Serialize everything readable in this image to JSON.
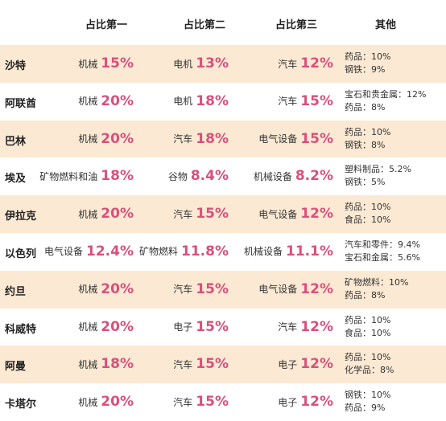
{
  "headers": [
    "占比第一",
    "占比第二",
    "占比第三",
    "其他"
  ],
  "rows": [
    {
      "country": "沙特",
      "first": {
        "label": "机械",
        "pct": "15%"
      },
      "second": {
        "label": "电机",
        "pct": "13%"
      },
      "third": {
        "label": "汽车",
        "pct": "12%"
      },
      "other": [
        "药品：10%",
        "钢铁：9%"
      ]
    },
    {
      "country": "阿联酋",
      "first": {
        "label": "机械",
        "pct": "20%"
      },
      "second": {
        "label": "电机",
        "pct": "18%"
      },
      "third": {
        "label": "汽车",
        "pct": "15%"
      },
      "other": [
        "宝石和贵金属：12%",
        "药品：8%"
      ]
    },
    {
      "country": "巴林",
      "first": {
        "label": "机械",
        "pct": "20%"
      },
      "second": {
        "label": "汽车",
        "pct": "18%"
      },
      "third": {
        "label": "电气设备",
        "pct": "15%"
      },
      "other": [
        "药品：10%",
        "钢铁：8%"
      ]
    },
    {
      "country": "埃及",
      "first": {
        "label": "矿物燃料和油",
        "pct": "18%"
      },
      "second": {
        "label": "谷物",
        "pct": "8.4%"
      },
      "third": {
        "label": "机械设备",
        "pct": "8.2%"
      },
      "other": [
        "塑料制品：5.2%",
        "钢铁：5%"
      ]
    },
    {
      "country": "伊拉克",
      "first": {
        "label": "机械",
        "pct": "20%"
      },
      "second": {
        "label": "汽车",
        "pct": "15%"
      },
      "third": {
        "label": "电气设备",
        "pct": "12%"
      },
      "other": [
        "药品：10%",
        "食品：10%"
      ]
    },
    {
      "country": "以色列",
      "first": {
        "label": "电气设备",
        "pct": "12.4%"
      },
      "second": {
        "label": "矿物燃料",
        "pct": "11.8%"
      },
      "third": {
        "label": "机械设备",
        "pct": "11.1%"
      },
      "other": [
        "汽车和零件：9.4%",
        "宝石和金属：5.6%"
      ]
    },
    {
      "country": "约旦",
      "first": {
        "label": "机械",
        "pct": "20%"
      },
      "second": {
        "label": "汽车",
        "pct": "15%"
      },
      "third": {
        "label": "电气设备",
        "pct": "12%"
      },
      "other": [
        "矿物燃料：10%",
        "药品：8%"
      ]
    },
    {
      "country": "科威特",
      "first": {
        "label": "机械",
        "pct": "20%"
      },
      "second": {
        "label": "电子",
        "pct": "15%"
      },
      "third": {
        "label": "汽车",
        "pct": "12%"
      },
      "other": [
        "药品：10%",
        "食品：10%"
      ]
    },
    {
      "country": "阿曼",
      "first": {
        "label": "机械",
        "pct": "18%"
      },
      "second": {
        "label": "汽车",
        "pct": "15%"
      },
      "third": {
        "label": "电子",
        "pct": "12%"
      },
      "other": [
        "药品：10%",
        "化学品：8%"
      ]
    },
    {
      "country": "卡塔尔",
      "first": {
        "label": "机械",
        "pct": "20%"
      },
      "second": {
        "label": "汽车",
        "pct": "15%"
      },
      "third": {
        "label": "电子",
        "pct": "12%"
      },
      "other": [
        "钢铁：10%",
        "药品：9%"
      ]
    }
  ]
}
